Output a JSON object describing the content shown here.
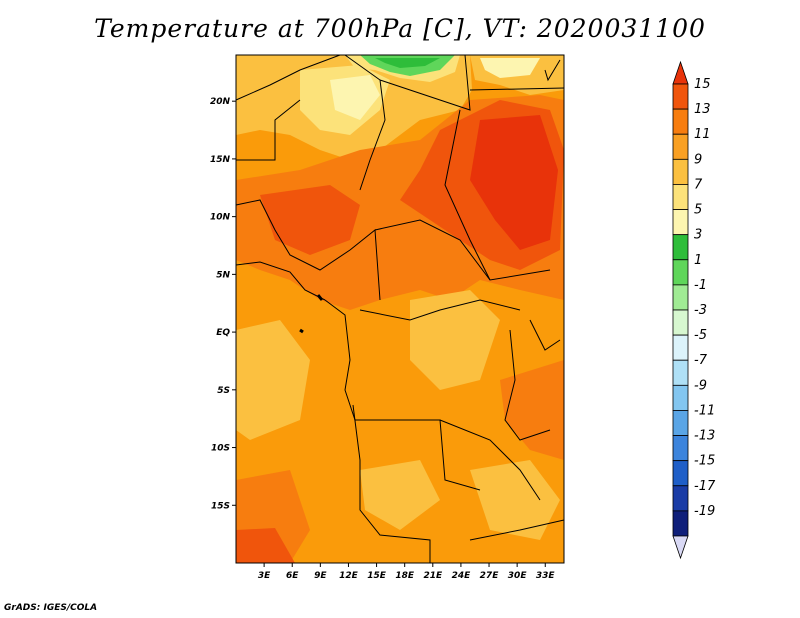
{
  "title": "Temperature at 700hPa [C], VT: 2020031100",
  "credit": "GrADS: IGES/COLA",
  "map": {
    "lon_range": [
      0,
      35
    ],
    "lat_range": [
      -20,
      24
    ],
    "lon_ticks": [
      "3E",
      "6E",
      "9E",
      "12E",
      "15E",
      "18E",
      "21E",
      "24E",
      "27E",
      "30E",
      "33E"
    ],
    "lat_ticks": [
      "20N",
      "15N",
      "10N",
      "5N",
      "EQ",
      "5S",
      "10S",
      "15S"
    ],
    "background_color": "#fa9b0a"
  },
  "colorbar": {
    "labels": [
      "15",
      "13",
      "11",
      "9",
      "7",
      "5",
      "3",
      "1",
      "-1",
      "-3",
      "-5",
      "-7",
      "-9",
      "-11",
      "-13",
      "-15",
      "-17",
      "-19"
    ],
    "colors": [
      "#e8330a",
      "#f0550c",
      "#f77d0f",
      "#f9a023",
      "#fbc040",
      "#fce27a",
      "#fdf5b0",
      "#2ebd3a",
      "#5fd65a",
      "#a0eb94",
      "#d7f7d0",
      "#dcf3fb",
      "#afe0f6",
      "#83c6f0",
      "#5aa5e6",
      "#3c84dc",
      "#1f5fc8",
      "#1a3ca6",
      "#0f1f7a",
      "#1a115a"
    ]
  }
}
